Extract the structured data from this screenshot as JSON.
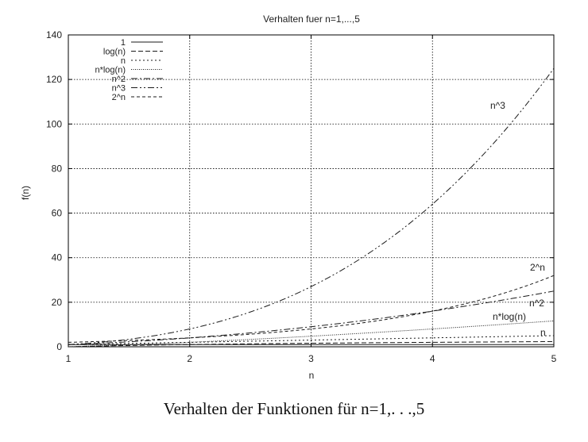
{
  "chart_data": {
    "type": "line",
    "title": "Verhalten fuer n=1,...,5",
    "xlabel": "n",
    "ylabel": "f(n)",
    "xlim": [
      1,
      5
    ],
    "ylim": [
      0,
      140
    ],
    "xticks": [
      "1",
      "2",
      "3",
      "4",
      "5"
    ],
    "yticks": [
      "0",
      "20",
      "40",
      "60",
      "80",
      "100",
      "120",
      "140"
    ],
    "grid": true,
    "legend_position": "top-left",
    "x": [
      1,
      2,
      3,
      4,
      5
    ],
    "series": [
      {
        "name": "1",
        "values": [
          1,
          1,
          1,
          1,
          1
        ],
        "dash": "solid",
        "label": ""
      },
      {
        "name": "log(n)",
        "values": [
          0,
          1,
          1.58,
          2,
          2.32
        ],
        "dash": "longdash",
        "label": ""
      },
      {
        "name": "n",
        "values": [
          1,
          2,
          3,
          4,
          5
        ],
        "dash": "dot",
        "label": "n"
      },
      {
        "name": "n*log(n)",
        "values": [
          0,
          2,
          4.75,
          8,
          11.61
        ],
        "dash": "finedot",
        "label": "n*log(n)"
      },
      {
        "name": "n^2",
        "values": [
          1,
          4,
          9,
          16,
          25
        ],
        "dash": "dashdot",
        "label": "n^2"
      },
      {
        "name": "n^3",
        "values": [
          1,
          8,
          27,
          64,
          125
        ],
        "dash": "dashdotdot",
        "label": "n^3"
      },
      {
        "name": "2^n",
        "values": [
          2,
          4,
          8,
          16,
          32
        ],
        "dash": "shortdash",
        "label": "2^n"
      }
    ]
  },
  "caption": "Verhalten der Funktionen für n=1,. . .,5"
}
